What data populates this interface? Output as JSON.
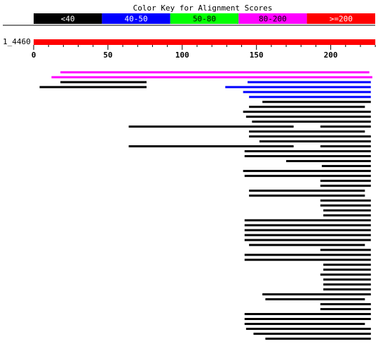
{
  "title": "Color Key for Alignment Scores",
  "color_key": [
    {
      "label": "<40",
      "color": "#000000"
    },
    {
      "label": "40-50",
      "color": "#0000ff"
    },
    {
      "label": "50-80",
      "color": "#00ff00"
    },
    {
      "label": "80-200",
      "color": "#ff00ff"
    },
    {
      "label": ">=200",
      "color": "#ff0000"
    }
  ],
  "query": {
    "name": "1_4460",
    "length": 230,
    "color": "#ff0000"
  },
  "axis": {
    "min": 0,
    "max": 230,
    "major_ticks": [
      0,
      50,
      100,
      150,
      200
    ],
    "minor_step": 10
  },
  "hits": [
    [
      {
        "start": 18,
        "end": 226,
        "color": "#ff00ff"
      }
    ],
    [
      {
        "start": 12,
        "end": 228,
        "color": "#ff00ff"
      }
    ],
    [
      {
        "start": 18,
        "end": 76,
        "color": "#000000"
      },
      {
        "start": 144,
        "end": 227,
        "color": "#0000ff"
      }
    ],
    [
      {
        "start": 4,
        "end": 76,
        "color": "#000000"
      },
      {
        "start": 129,
        "end": 227,
        "color": "#0000ff"
      }
    ],
    [
      {
        "start": 141,
        "end": 227,
        "color": "#0000ff"
      }
    ],
    [
      {
        "start": 145,
        "end": 227,
        "color": "#0000ff"
      }
    ],
    [
      {
        "start": 154,
        "end": 227,
        "color": "#000000"
      }
    ],
    [
      {
        "start": 145,
        "end": 223,
        "color": "#000000"
      }
    ],
    [
      {
        "start": 141,
        "end": 227,
        "color": "#000000"
      }
    ],
    [
      {
        "start": 143,
        "end": 227,
        "color": "#000000"
      }
    ],
    [
      {
        "start": 147,
        "end": 227,
        "color": "#000000"
      }
    ],
    [
      {
        "start": 64,
        "end": 175,
        "color": "#000000"
      },
      {
        "start": 193,
        "end": 227,
        "color": "#000000"
      }
    ],
    [
      {
        "start": 145,
        "end": 223,
        "color": "#000000"
      }
    ],
    [
      {
        "start": 145,
        "end": 227,
        "color": "#000000"
      }
    ],
    [
      {
        "start": 152,
        "end": 227,
        "color": "#000000"
      }
    ],
    [
      {
        "start": 64,
        "end": 175,
        "color": "#000000"
      },
      {
        "start": 193,
        "end": 227,
        "color": "#000000"
      }
    ],
    [
      {
        "start": 142,
        "end": 227,
        "color": "#000000"
      }
    ],
    [
      {
        "start": 142,
        "end": 227,
        "color": "#000000"
      }
    ],
    [
      {
        "start": 170,
        "end": 227,
        "color": "#000000"
      }
    ],
    [
      {
        "start": 194,
        "end": 227,
        "color": "#000000"
      }
    ],
    [
      {
        "start": 141,
        "end": 227,
        "color": "#000000"
      }
    ],
    [
      {
        "start": 142,
        "end": 227,
        "color": "#000000"
      }
    ],
    [
      {
        "start": 193,
        "end": 227,
        "color": "#000000"
      }
    ],
    [
      {
        "start": 193,
        "end": 227,
        "color": "#000000"
      }
    ],
    [
      {
        "start": 145,
        "end": 223,
        "color": "#000000"
      }
    ],
    [
      {
        "start": 145,
        "end": 223,
        "color": "#000000"
      }
    ],
    [
      {
        "start": 193,
        "end": 227,
        "color": "#000000"
      }
    ],
    [
      {
        "start": 193,
        "end": 227,
        "color": "#000000"
      }
    ],
    [
      {
        "start": 195,
        "end": 227,
        "color": "#000000"
      }
    ],
    [
      {
        "start": 195,
        "end": 227,
        "color": "#000000"
      }
    ],
    [
      {
        "start": 142,
        "end": 227,
        "color": "#000000"
      }
    ],
    [
      {
        "start": 142,
        "end": 227,
        "color": "#000000"
      }
    ],
    [
      {
        "start": 142,
        "end": 227,
        "color": "#000000"
      }
    ],
    [
      {
        "start": 142,
        "end": 227,
        "color": "#000000"
      }
    ],
    [
      {
        "start": 142,
        "end": 227,
        "color": "#000000"
      }
    ],
    [
      {
        "start": 145,
        "end": 223,
        "color": "#000000"
      }
    ],
    [
      {
        "start": 193,
        "end": 227,
        "color": "#000000"
      }
    ],
    [
      {
        "start": 142,
        "end": 227,
        "color": "#000000"
      }
    ],
    [
      {
        "start": 142,
        "end": 227,
        "color": "#000000"
      }
    ],
    [
      {
        "start": 195,
        "end": 227,
        "color": "#000000"
      }
    ],
    [
      {
        "start": 195,
        "end": 227,
        "color": "#000000"
      }
    ],
    [
      {
        "start": 193,
        "end": 227,
        "color": "#000000"
      }
    ],
    [
      {
        "start": 195,
        "end": 227,
        "color": "#000000"
      }
    ],
    [
      {
        "start": 195,
        "end": 227,
        "color": "#000000"
      }
    ],
    [
      {
        "start": 195,
        "end": 227,
        "color": "#000000"
      }
    ],
    [
      {
        "start": 154,
        "end": 227,
        "color": "#000000"
      }
    ],
    [
      {
        "start": 156,
        "end": 223,
        "color": "#000000"
      }
    ],
    [
      {
        "start": 193,
        "end": 227,
        "color": "#000000"
      }
    ],
    [
      {
        "start": 193,
        "end": 227,
        "color": "#000000"
      }
    ],
    [
      {
        "start": 142,
        "end": 227,
        "color": "#000000"
      }
    ],
    [
      {
        "start": 142,
        "end": 227,
        "color": "#000000"
      }
    ],
    [
      {
        "start": 142,
        "end": 223,
        "color": "#000000"
      }
    ],
    [
      {
        "start": 143,
        "end": 227,
        "color": "#000000"
      }
    ],
    [
      {
        "start": 148,
        "end": 227,
        "color": "#000000"
      }
    ],
    [
      {
        "start": 156,
        "end": 227,
        "color": "#000000"
      }
    ]
  ]
}
